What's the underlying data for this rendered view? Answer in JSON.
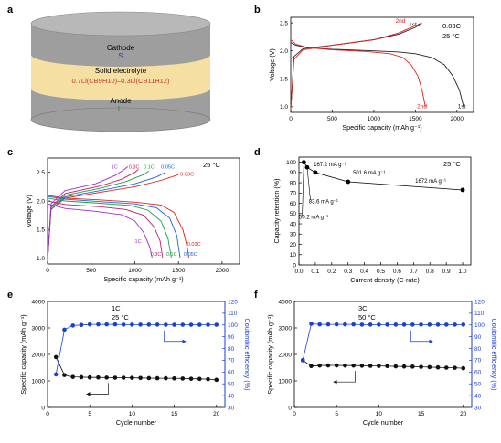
{
  "figure": {
    "panel_letters": [
      "a",
      "b",
      "c",
      "d",
      "e",
      "f"
    ]
  },
  "panel_a": {
    "cathode_label": "Cathode",
    "cathode_material": "S",
    "electrolyte_label": "Solid electrolyte",
    "electrolyte_formula": "0.7Li(CB9H10)–0.3Li(CB11H12)",
    "anode_label": "Anode",
    "anode_material": "Li",
    "colors": {
      "cathode": "#9e9e9e",
      "electrolyte": "#f6dfa2",
      "anode": "#9e9e9e",
      "cathode_text": "#1f3fbf",
      "formula_text": "#c0392b",
      "anode_text": "#1e8c2a"
    }
  },
  "chart_data": [
    {
      "panel": "b",
      "type": "line",
      "xlabel": "Specific capacity (mAh g⁻¹)",
      "ylabel": "Voltage (V)",
      "xlim": [
        0,
        2200
      ],
      "ylim": [
        0.9,
        2.6
      ],
      "xticks": [
        0,
        500,
        1000,
        1500,
        2000
      ],
      "yticks": [
        1.0,
        1.5,
        2.0,
        2.5
      ],
      "annotations": [
        "0.03C",
        "25 °C"
      ],
      "series": [
        {
          "name": "1st",
          "color": "#222222",
          "discharge": [
            [
              0,
              2.15
            ],
            [
              60,
              2.1
            ],
            [
              200,
              2.06
            ],
            [
              500,
              2.03
            ],
            [
              1000,
              2.0
            ],
            [
              1300,
              1.98
            ],
            [
              1500,
              1.95
            ],
            [
              1700,
              1.88
            ],
            [
              1850,
              1.75
            ],
            [
              1950,
              1.55
            ],
            [
              2030,
              1.3
            ],
            [
              2080,
              1.0
            ]
          ],
          "charge": [
            [
              0,
              0.95
            ],
            [
              40,
              1.9
            ],
            [
              150,
              2.04
            ],
            [
              500,
              2.1
            ],
            [
              1000,
              2.2
            ],
            [
              1300,
              2.3
            ],
            [
              1500,
              2.42
            ],
            [
              1560,
              2.48
            ]
          ]
        },
        {
          "name": "2nd",
          "color": "#e02020",
          "discharge": [
            [
              0,
              2.2
            ],
            [
              60,
              2.12
            ],
            [
              200,
              2.06
            ],
            [
              500,
              2.02
            ],
            [
              900,
              1.99
            ],
            [
              1200,
              1.95
            ],
            [
              1350,
              1.88
            ],
            [
              1450,
              1.75
            ],
            [
              1530,
              1.55
            ],
            [
              1580,
              1.3
            ],
            [
              1620,
              1.0
            ]
          ],
          "charge": [
            [
              0,
              0.95
            ],
            [
              40,
              1.85
            ],
            [
              150,
              2.02
            ],
            [
              500,
              2.1
            ],
            [
              1000,
              2.2
            ],
            [
              1300,
              2.32
            ],
            [
              1500,
              2.45
            ],
            [
              1580,
              2.5
            ]
          ]
        }
      ],
      "end_labels": [
        {
          "text": "2nd",
          "color": "#e02020",
          "at": [
            1260,
            2.5
          ],
          "anchor": "start"
        },
        {
          "text": "1st",
          "color": "#222222",
          "at": [
            1420,
            2.44
          ],
          "anchor": "start"
        },
        {
          "text": "2nd",
          "color": "#e02020",
          "at": [
            1520,
            0.97
          ],
          "anchor": "start"
        },
        {
          "text": "1st",
          "color": "#222222",
          "at": [
            2010,
            0.97
          ],
          "anchor": "start"
        }
      ]
    },
    {
      "panel": "c",
      "type": "line",
      "xlabel": "Specific capacity (mAh g⁻¹)",
      "ylabel": "Voltage (V)",
      "xlim": [
        0,
        2200
      ],
      "ylim": [
        0.9,
        2.75
      ],
      "xticks": [
        0,
        500,
        1000,
        1500,
        2000
      ],
      "yticks": [
        1.0,
        1.5,
        2.0,
        2.5
      ],
      "annotations": [
        "25 °C"
      ],
      "series": [
        {
          "name": "0.03C",
          "color": "#e02020",
          "discharge": [
            [
              0,
              2.1
            ],
            [
              200,
              2.05
            ],
            [
              600,
              2.02
            ],
            [
              1000,
              1.98
            ],
            [
              1300,
              1.93
            ],
            [
              1450,
              1.8
            ],
            [
              1550,
              1.5
            ],
            [
              1600,
              1.2
            ],
            [
              1620,
              1.0
            ]
          ],
          "charge": [
            [
              0,
              0.95
            ],
            [
              40,
              1.85
            ],
            [
              200,
              2.05
            ],
            [
              600,
              2.15
            ],
            [
              1000,
              2.25
            ],
            [
              1300,
              2.36
            ],
            [
              1500,
              2.46
            ]
          ]
        },
        {
          "name": "0.05C",
          "color": "#2060d8",
          "discharge": [
            [
              0,
              2.08
            ],
            [
              200,
              2.03
            ],
            [
              600,
              1.99
            ],
            [
              1000,
              1.95
            ],
            [
              1250,
              1.88
            ],
            [
              1400,
              1.7
            ],
            [
              1480,
              1.4
            ],
            [
              1520,
              1.0
            ]
          ],
          "charge": [
            [
              0,
              0.95
            ],
            [
              40,
              1.85
            ],
            [
              200,
              2.07
            ],
            [
              600,
              2.18
            ],
            [
              1000,
              2.3
            ],
            [
              1250,
              2.42
            ],
            [
              1350,
              2.5
            ]
          ]
        },
        {
          "name": "0.1C",
          "color": "#1e9e40",
          "discharge": [
            [
              0,
              2.05
            ],
            [
              200,
              2.0
            ],
            [
              600,
              1.96
            ],
            [
              950,
              1.92
            ],
            [
              1150,
              1.84
            ],
            [
              1300,
              1.65
            ],
            [
              1380,
              1.35
            ],
            [
              1420,
              1.0
            ]
          ],
          "charge": [
            [
              0,
              0.95
            ],
            [
              40,
              1.88
            ],
            [
              200,
              2.1
            ],
            [
              600,
              2.22
            ],
            [
              900,
              2.34
            ],
            [
              1100,
              2.46
            ],
            [
              1160,
              2.52
            ]
          ]
        },
        {
          "name": "0.3C",
          "color": "#c02060",
          "discharge": [
            [
              0,
              2.0
            ],
            [
              200,
              1.94
            ],
            [
              600,
              1.9
            ],
            [
              900,
              1.85
            ],
            [
              1100,
              1.75
            ],
            [
              1220,
              1.55
            ],
            [
              1290,
              1.3
            ],
            [
              1320,
              1.0
            ]
          ],
          "charge": [
            [
              0,
              0.95
            ],
            [
              40,
              1.9
            ],
            [
              200,
              2.13
            ],
            [
              600,
              2.26
            ],
            [
              850,
              2.38
            ],
            [
              1000,
              2.5
            ],
            [
              1040,
              2.55
            ]
          ]
        },
        {
          "name": "1C",
          "color": "#9b30d0",
          "discharge": [
            [
              0,
              1.95
            ],
            [
              200,
              1.87
            ],
            [
              550,
              1.82
            ],
            [
              850,
              1.76
            ],
            [
              1000,
              1.65
            ],
            [
              1100,
              1.45
            ],
            [
              1170,
              1.2
            ],
            [
              1200,
              1.0
            ]
          ],
          "charge": [
            [
              0,
              0.95
            ],
            [
              40,
              1.95
            ],
            [
              200,
              2.18
            ],
            [
              550,
              2.3
            ],
            [
              780,
              2.45
            ],
            [
              880,
              2.55
            ],
            [
              920,
              2.6
            ]
          ]
        }
      ],
      "end_labels": [
        {
          "text": "1C",
          "color": "#9b30d0",
          "at": [
            730,
            2.57
          ],
          "anchor": "start"
        },
        {
          "text": "0.3C",
          "color": "#c02060",
          "at": [
            930,
            2.57
          ],
          "anchor": "start"
        },
        {
          "text": "0.1C",
          "color": "#1e9e40",
          "at": [
            1100,
            2.57
          ],
          "anchor": "start"
        },
        {
          "text": "0.05C",
          "color": "#2060d8",
          "at": [
            1300,
            2.57
          ],
          "anchor": "start"
        },
        {
          "text": "0.03C",
          "color": "#e02020",
          "at": [
            1520,
            2.44
          ],
          "anchor": "start"
        },
        {
          "text": "1C",
          "color": "#9b30d0",
          "at": [
            1000,
            1.27
          ],
          "anchor": "start"
        },
        {
          "text": "0.3C",
          "color": "#c02060",
          "at": [
            1180,
            1.04
          ],
          "anchor": "start"
        },
        {
          "text": "0.1C",
          "color": "#1e9e40",
          "at": [
            1360,
            1.04
          ],
          "anchor": "start"
        },
        {
          "text": "0.05C",
          "color": "#2060d8",
          "at": [
            1560,
            1.04
          ],
          "anchor": "start"
        },
        {
          "text": "0.03C",
          "color": "#e02020",
          "at": [
            1600,
            1.22
          ],
          "anchor": "start"
        }
      ]
    },
    {
      "panel": "d",
      "type": "scatter",
      "xlabel": "Current density (C-rate)",
      "ylabel": "Capacity retention (%)",
      "xlim": [
        0,
        1.05
      ],
      "ylim": [
        0,
        105
      ],
      "xticks": [
        0.0,
        0.1,
        0.2,
        0.3,
        0.4,
        0.5,
        0.6,
        0.7,
        0.8,
        0.9,
        1.0
      ],
      "yticks": [
        0,
        10,
        20,
        30,
        40,
        50,
        60,
        70,
        80,
        90,
        100
      ],
      "annotations": [
        "25 °C"
      ],
      "x": [
        0.03,
        0.05,
        0.1,
        0.3,
        1.0
      ],
      "values": [
        100,
        95,
        90,
        81,
        73
      ],
      "point_labels": [
        {
          "text": "167.2 mA g⁻¹",
          "at": [
            0.09,
            96
          ]
        },
        {
          "text": "83.6 mA g⁻¹",
          "at": [
            0.06,
            60
          ]
        },
        {
          "text": "50.2 mA g⁻¹",
          "at": [
            0.0,
            45
          ]
        },
        {
          "text": "501.6 mA g⁻¹",
          "at": [
            0.33,
            88
          ]
        },
        {
          "text": "1672 mA g⁻¹",
          "at": [
            0.71,
            80
          ]
        }
      ]
    },
    {
      "panel": "e",
      "type": "scatter",
      "xlabel": "Cycle number",
      "ylabel": "Specific capacity (mAh g⁻¹)",
      "y2label": "Coulombic efficiency (%)",
      "xlim": [
        0,
        21
      ],
      "ylim": [
        0,
        4000
      ],
      "y2lim": [
        30,
        120
      ],
      "xticks": [
        0,
        5,
        10,
        15,
        20
      ],
      "yticks": [
        0,
        1000,
        2000,
        3000,
        4000
      ],
      "y2ticks": [
        30,
        40,
        50,
        60,
        70,
        80,
        90,
        100,
        110,
        120
      ],
      "annotations": [
        "1C",
        "25 °C"
      ],
      "x": [
        1,
        2,
        3,
        4,
        5,
        6,
        7,
        8,
        9,
        10,
        11,
        12,
        13,
        14,
        15,
        16,
        17,
        18,
        19,
        20
      ],
      "capacity": [
        1900,
        1220,
        1150,
        1140,
        1130,
        1130,
        1125,
        1120,
        1120,
        1115,
        1110,
        1105,
        1100,
        1100,
        1095,
        1090,
        1080,
        1075,
        1065,
        1040
      ],
      "coulombic_efficiency": [
        58,
        96,
        99.5,
        100,
        100.5,
        100.5,
        100.5,
        100.5,
        100.3,
        100.3,
        100.3,
        100.3,
        100.3,
        100.2,
        100.2,
        100.2,
        100.2,
        100.2,
        100.2,
        100.2
      ],
      "colors": {
        "capacity": "#111111",
        "efficiency": "#1a3fd6"
      }
    },
    {
      "panel": "f",
      "type": "scatter",
      "xlabel": "Cycle number",
      "ylabel": "Specific capacity (mAh g⁻¹)",
      "y2label": "Coulombic efficiency (%)",
      "xlim": [
        0,
        21
      ],
      "ylim": [
        0,
        4000
      ],
      "y2lim": [
        30,
        120
      ],
      "xticks": [
        0,
        5,
        10,
        15,
        20
      ],
      "yticks": [
        0,
        1000,
        2000,
        3000,
        4000
      ],
      "y2ticks": [
        30,
        40,
        50,
        60,
        70,
        80,
        90,
        100,
        110,
        120
      ],
      "annotations": [
        "3C",
        "50 °C"
      ],
      "x": [
        1,
        2,
        3,
        4,
        5,
        6,
        7,
        8,
        9,
        10,
        11,
        12,
        13,
        14,
        15,
        16,
        17,
        18,
        19,
        20
      ],
      "capacity": [
        1780,
        1560,
        1580,
        1585,
        1585,
        1580,
        1580,
        1575,
        1570,
        1565,
        1560,
        1550,
        1545,
        1540,
        1530,
        1520,
        1510,
        1500,
        1495,
        1480
      ],
      "coulombic_efficiency": [
        70,
        101,
        100.5,
        100.5,
        100.5,
        100.5,
        100.5,
        100.3,
        100.3,
        100.3,
        100.3,
        100.3,
        100.3,
        100.3,
        100.3,
        100.3,
        100.3,
        100.3,
        100.3,
        100.3
      ],
      "colors": {
        "capacity": "#111111",
        "efficiency": "#1a3fd6"
      }
    }
  ]
}
